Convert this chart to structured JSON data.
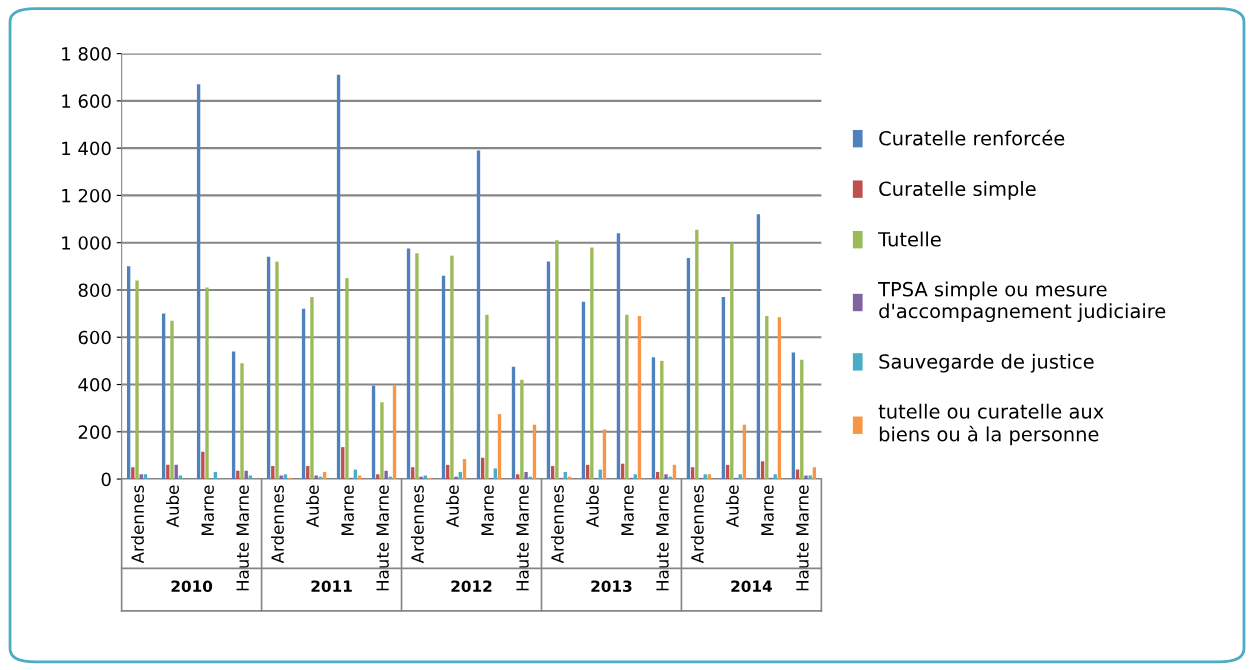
{
  "chart_data": {
    "type": "bar",
    "categories": [
      "Ardennes",
      "Aube",
      "Marne",
      "Haute Marne",
      "Ardennes",
      "Aube",
      "Marne",
      "Haute Marne",
      "Ardennes",
      "Aube",
      "Marne",
      "Haute Marne",
      "Ardennes",
      "Aube",
      "Marne",
      "Haute Marne",
      "Ardennes",
      "Aube",
      "Marne",
      "Haute Marne"
    ],
    "annotations": [
      "2010",
      "2011",
      "2012",
      "2013",
      "2014"
    ],
    "series": [
      {
        "name": "Curatelle renforcée",
        "color": "#4f81bd",
        "values": [
          900,
          700,
          1670,
          540,
          940,
          720,
          1710,
          395,
          975,
          860,
          1390,
          475,
          920,
          750,
          1040,
          515,
          935,
          770,
          1120,
          535
        ]
      },
      {
        "name": "Curatelle simple",
        "color": "#c0504d",
        "values": [
          50,
          60,
          115,
          35,
          55,
          55,
          135,
          20,
          50,
          60,
          90,
          20,
          55,
          60,
          65,
          30,
          50,
          60,
          75,
          40
        ]
      },
      {
        "name": "Tutelle",
        "color": "#9bbb59",
        "values": [
          840,
          670,
          810,
          490,
          920,
          770,
          850,
          325,
          955,
          945,
          695,
          420,
          1010,
          980,
          695,
          500,
          1055,
          1000,
          690,
          505
        ]
      },
      {
        "name": "TPSA simple ou mesure d'accompagnement judiciaire",
        "color": "#8064a2",
        "values": [
          20,
          60,
          null,
          35,
          15,
          15,
          5,
          35,
          10,
          10,
          5,
          30,
          5,
          5,
          5,
          20,
          5,
          5,
          5,
          15
        ]
      },
      {
        "name": "Sauvegarde de justice",
        "color": "#4bacc6",
        "values": [
          20,
          15,
          30,
          15,
          20,
          10,
          40,
          10,
          15,
          30,
          45,
          10,
          30,
          40,
          20,
          10,
          20,
          20,
          20,
          15
        ]
      },
      {
        "name": "tutelle ou curatelle aux biens ou à la personne",
        "color": "#f79646",
        "values": [
          0,
          0,
          0,
          0,
          5,
          30,
          15,
          395,
          5,
          85,
          275,
          230,
          10,
          210,
          690,
          60,
          20,
          230,
          685,
          50
        ]
      }
    ],
    "ylim": [
      0,
      1800
    ],
    "yticks": [
      0,
      200,
      400,
      600,
      800,
      {
        "value": 1000,
        "label": "1 000"
      },
      {
        "value": 1200,
        "label": "1 200"
      },
      {
        "value": 1400,
        "label": "1 400"
      },
      {
        "value": 1600,
        "label": "1 600"
      },
      {
        "value": 1800,
        "label": "1 800"
      }
    ],
    "grid": "y",
    "legend": "right"
  }
}
